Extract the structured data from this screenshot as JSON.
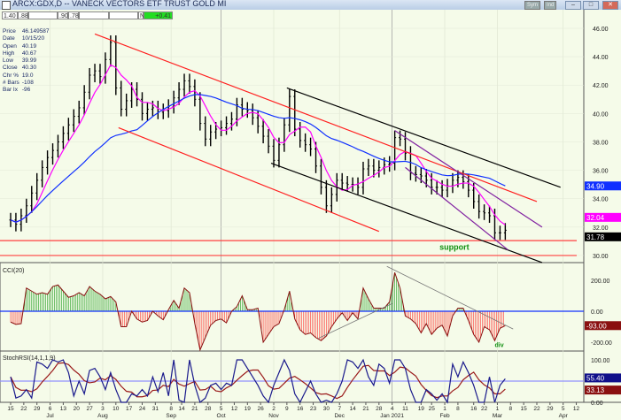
{
  "window": {
    "title": "ARCX:GDX,D -- VANECK VECTORS ETF TRUST GOLD MI",
    "buttons": [
      "Sym",
      "Ind"
    ],
    "minimize": "–",
    "maximize": "□",
    "close": "✕"
  },
  "toolbar": {
    "fields": [
      "1.40",
      ".88",
      "",
      ".90",
      ".78",
      "",
      "",
      "N"
    ],
    "change": "+0.41",
    "change_color": "#22dd22"
  },
  "info": [
    {
      "k": "Price",
      "v": "46.149587"
    },
    {
      "k": "Date",
      "v": "10/15/20"
    },
    {
      "k": "Open",
      "v": "40.19"
    },
    {
      "k": "High",
      "v": "40.67"
    },
    {
      "k": "Low",
      "v": "39.99"
    },
    {
      "k": "Close",
      "v": "40.30"
    },
    {
      "k": "Chr %",
      "v": "19.0"
    },
    {
      "k": "# Bars",
      "v": "-108"
    },
    {
      "k": "Bar Ix",
      "v": "-96"
    }
  ],
  "chart_data": [
    {
      "type": "ohlc",
      "panel": "price",
      "x_start": "2020-06-15",
      "x_end": "2021-03-04",
      "ylim": [
        29.4,
        46.6
      ],
      "yticks": [
        "46.00",
        "44.00",
        "42.00",
        "40.00",
        "38.00",
        "36.00",
        "34.00",
        "32.00",
        "30.00"
      ],
      "close": [
        32.5,
        32.2,
        32.8,
        33.5,
        34.4,
        35.3,
        36.2,
        36.9,
        37.4,
        38.0,
        38.6,
        39.2,
        39.8,
        40.4,
        41.5,
        42.7,
        43.0,
        42.6,
        43.8,
        45.0,
        41.8,
        40.3,
        40.9,
        41.7,
        41.0,
        40.0,
        40.3,
        40.4,
        40.1,
        40.2,
        40.5,
        41.1,
        41.7,
        42.3,
        41.9,
        41.0,
        39.3,
        38.2,
        38.7,
        38.9,
        39.0,
        39.3,
        39.6,
        40.6,
        40.3,
        40.2,
        39.7,
        39.1,
        38.4,
        37.7,
        36.7,
        37.8,
        39.2,
        41.2,
        38.9,
        38.1,
        37.8,
        37.5,
        36.3,
        34.8,
        33.5,
        34.3,
        35.3,
        35.1,
        35.0,
        35.0,
        34.8,
        36.1,
        36.3,
        36.0,
        36.2,
        36.4,
        36.5,
        38.3,
        38.2,
        37.2,
        35.8,
        35.7,
        35.6,
        35.3,
        34.8,
        34.8,
        34.6,
        34.9,
        35.3,
        35.5,
        35.2,
        34.6,
        33.8,
        33.1,
        33.0,
        32.8,
        31.6,
        31.6,
        31.78
      ],
      "moving_averages": [
        {
          "color": "#ff00ff",
          "last_label": "32.04"
        },
        {
          "color": "#1030ff",
          "last_label": "34.90"
        }
      ],
      "last_price_label": "31.78",
      "trendlines": [
        {
          "color": "#ff2020",
          "from": [
            "2020-07-29",
            45.6
          ],
          "to": [
            "2021-03-22",
            33.8
          ]
        },
        {
          "color": "#ff2020",
          "from": [
            "2020-08-11",
            39.0
          ],
          "to": [
            "2020-12-28",
            31.7
          ]
        },
        {
          "color": "#000000",
          "from": [
            "2020-11-09",
            41.8
          ],
          "to": [
            "2021-04-02",
            34.8
          ]
        },
        {
          "color": "#000000",
          "from": [
            "2020-10-30",
            36.5
          ],
          "to": [
            "2021-03-24",
            29.5
          ]
        },
        {
          "color": "#8020a0",
          "from": [
            "2021-01-05",
            38.8
          ],
          "to": [
            "2021-03-24",
            32.0
          ]
        },
        {
          "color": "#8020a0",
          "from": [
            "2021-01-11",
            36.2
          ],
          "to": [
            "2021-03-05",
            30.4
          ]
        }
      ],
      "horizontal_lines": [
        {
          "color": "#ff4040",
          "value": 31.05
        },
        {
          "color": "#ff4040",
          "value": 30.0
        }
      ],
      "annotation": {
        "text": "support",
        "date": "2021-01-28",
        "value": 30.4,
        "color": "#109010"
      }
    },
    {
      "type": "histogram-line",
      "panel": "cci",
      "title": "CCI(20)",
      "ylim": [
        -280,
        290
      ],
      "yticks": [
        "200.00",
        "0.00",
        "-200.00"
      ],
      "last_label": "-93.00",
      "values": [
        -70,
        -85,
        -80,
        150,
        130,
        110,
        120,
        110,
        160,
        170,
        130,
        90,
        100,
        120,
        100,
        160,
        130,
        110,
        80,
        95,
        60,
        -100,
        -100,
        0,
        -50,
        -70,
        -60,
        0,
        -30,
        -55,
        10,
        70,
        20,
        150,
        120,
        -80,
        -250,
        -170,
        -90,
        -60,
        -50,
        -75,
        0,
        30,
        100,
        10,
        10,
        20,
        -200,
        -150,
        -100,
        -80,
        10,
        130,
        -50,
        -120,
        -150,
        -140,
        -170,
        -190,
        -160,
        -100,
        -50,
        -10,
        -60,
        -10,
        -50,
        150,
        80,
        20,
        20,
        20,
        60,
        250,
        150,
        -30,
        -50,
        -80,
        -140,
        -80,
        -150,
        -110,
        -90,
        -160,
        -30,
        20,
        20,
        -60,
        -150,
        -200,
        -100,
        -120,
        -190,
        -110,
        -93
      ],
      "trendlines": [
        {
          "from": [
            "2020-11-25",
            -175
          ],
          "to": [
            "2021-01-04",
            50
          ]
        },
        {
          "from": [
            "2020-12-31",
            290
          ],
          "to": [
            "2021-03-09",
            -115
          ]
        }
      ],
      "annotation": {
        "text": "div",
        "date": "2021-02-26",
        "value": -215,
        "color": "#109010"
      }
    },
    {
      "type": "line",
      "panel": "stochrsi",
      "title": "StochRSI(14,1,1,9)",
      "ylim": [
        0,
        100
      ],
      "yticks": [
        "100.00",
        "0.00"
      ],
      "fast_color": "#1a1a8c",
      "slow_color": "#9a1a1a",
      "fast_last_label": "55.40",
      "slow_last_label": "33.13",
      "reference_line": 50,
      "fast": [
        60,
        10,
        15,
        30,
        10,
        95,
        90,
        80,
        100,
        95,
        100,
        70,
        15,
        50,
        20,
        75,
        80,
        60,
        30,
        70,
        30,
        0,
        0,
        20,
        15,
        30,
        15,
        60,
        25,
        70,
        15,
        100,
        5,
        0,
        100,
        40,
        0,
        10,
        40,
        45,
        30,
        45,
        40,
        100,
        100,
        80,
        60,
        40,
        15,
        0,
        40,
        70,
        100,
        75,
        20,
        0,
        25,
        50,
        20,
        0,
        5,
        0,
        20,
        50,
        100,
        95,
        80,
        100,
        60,
        40,
        90,
        80,
        45,
        100,
        100,
        80,
        30,
        0,
        0,
        30,
        20,
        5,
        20,
        0,
        90,
        60,
        95,
        70,
        40,
        0,
        0,
        60,
        0,
        40,
        55.4
      ]
    }
  ],
  "x_axis": {
    "ticks": [
      {
        "label": "15",
        "date": "2020-06-15"
      },
      {
        "label": "22",
        "date": "2020-06-22"
      },
      {
        "label": "29",
        "date": "2020-06-29"
      },
      {
        "label": "6",
        "date": "2020-07-06"
      },
      {
        "label": "13",
        "date": "2020-07-13"
      },
      {
        "label": "20",
        "date": "2020-07-20"
      },
      {
        "label": "27",
        "date": "2020-07-27"
      },
      {
        "label": "3",
        "date": "2020-08-03"
      },
      {
        "label": "10",
        "date": "2020-08-10"
      },
      {
        "label": "17",
        "date": "2020-08-17"
      },
      {
        "label": "24",
        "date": "2020-08-24"
      },
      {
        "label": "31",
        "date": "2020-08-31"
      },
      {
        "label": "8",
        "date": "2020-09-08"
      },
      {
        "label": "14",
        "date": "2020-09-14"
      },
      {
        "label": "21",
        "date": "2020-09-21"
      },
      {
        "label": "28",
        "date": "2020-09-28"
      },
      {
        "label": "5",
        "date": "2020-10-05"
      },
      {
        "label": "12",
        "date": "2020-10-12"
      },
      {
        "label": "19",
        "date": "2020-10-19"
      },
      {
        "label": "26",
        "date": "2020-10-26"
      },
      {
        "label": "2",
        "date": "2020-11-02"
      },
      {
        "label": "9",
        "date": "2020-11-09"
      },
      {
        "label": "16",
        "date": "2020-11-16"
      },
      {
        "label": "23",
        "date": "2020-11-23"
      },
      {
        "label": "30",
        "date": "2020-11-30"
      },
      {
        "label": "7",
        "date": "2020-12-07"
      },
      {
        "label": "14",
        "date": "2020-12-14"
      },
      {
        "label": "21",
        "date": "2020-12-21"
      },
      {
        "label": "28",
        "date": "2020-12-28"
      },
      {
        "label": "4",
        "date": "2021-01-04"
      },
      {
        "label": "11",
        "date": "2021-01-11"
      },
      {
        "label": "19",
        "date": "2021-01-19"
      },
      {
        "label": "25",
        "date": "2021-01-25"
      },
      {
        "label": "1",
        "date": "2021-02-01"
      },
      {
        "label": "8",
        "date": "2021-02-08"
      },
      {
        "label": "16",
        "date": "2021-02-16"
      },
      {
        "label": "22",
        "date": "2021-02-22"
      },
      {
        "label": "1",
        "date": "2021-03-01"
      },
      {
        "label": "8",
        "date": "2021-03-08"
      },
      {
        "label": "15",
        "date": "2021-03-15"
      },
      {
        "label": "22",
        "date": "2021-03-22"
      },
      {
        "label": "29",
        "date": "2021-03-29"
      },
      {
        "label": "5",
        "date": "2021-04-05"
      },
      {
        "label": "12",
        "date": "2021-04-12"
      }
    ],
    "months": [
      {
        "label": "Jul",
        "date": "2020-07-06"
      },
      {
        "label": "Aug",
        "date": "2020-08-03"
      },
      {
        "label": "Sep",
        "date": "2020-09-08"
      },
      {
        "label": "Oct",
        "date": "2020-10-05"
      },
      {
        "label": "Nov",
        "date": "2020-11-02"
      },
      {
        "label": "Dec",
        "date": "2020-12-07"
      },
      {
        "label": "Jan 2021",
        "date": "2021-01-04"
      },
      {
        "label": "Feb",
        "date": "2021-02-01"
      },
      {
        "label": "Mar",
        "date": "2021-03-01"
      },
      {
        "label": "Apr",
        "date": "2021-04-05"
      }
    ]
  }
}
